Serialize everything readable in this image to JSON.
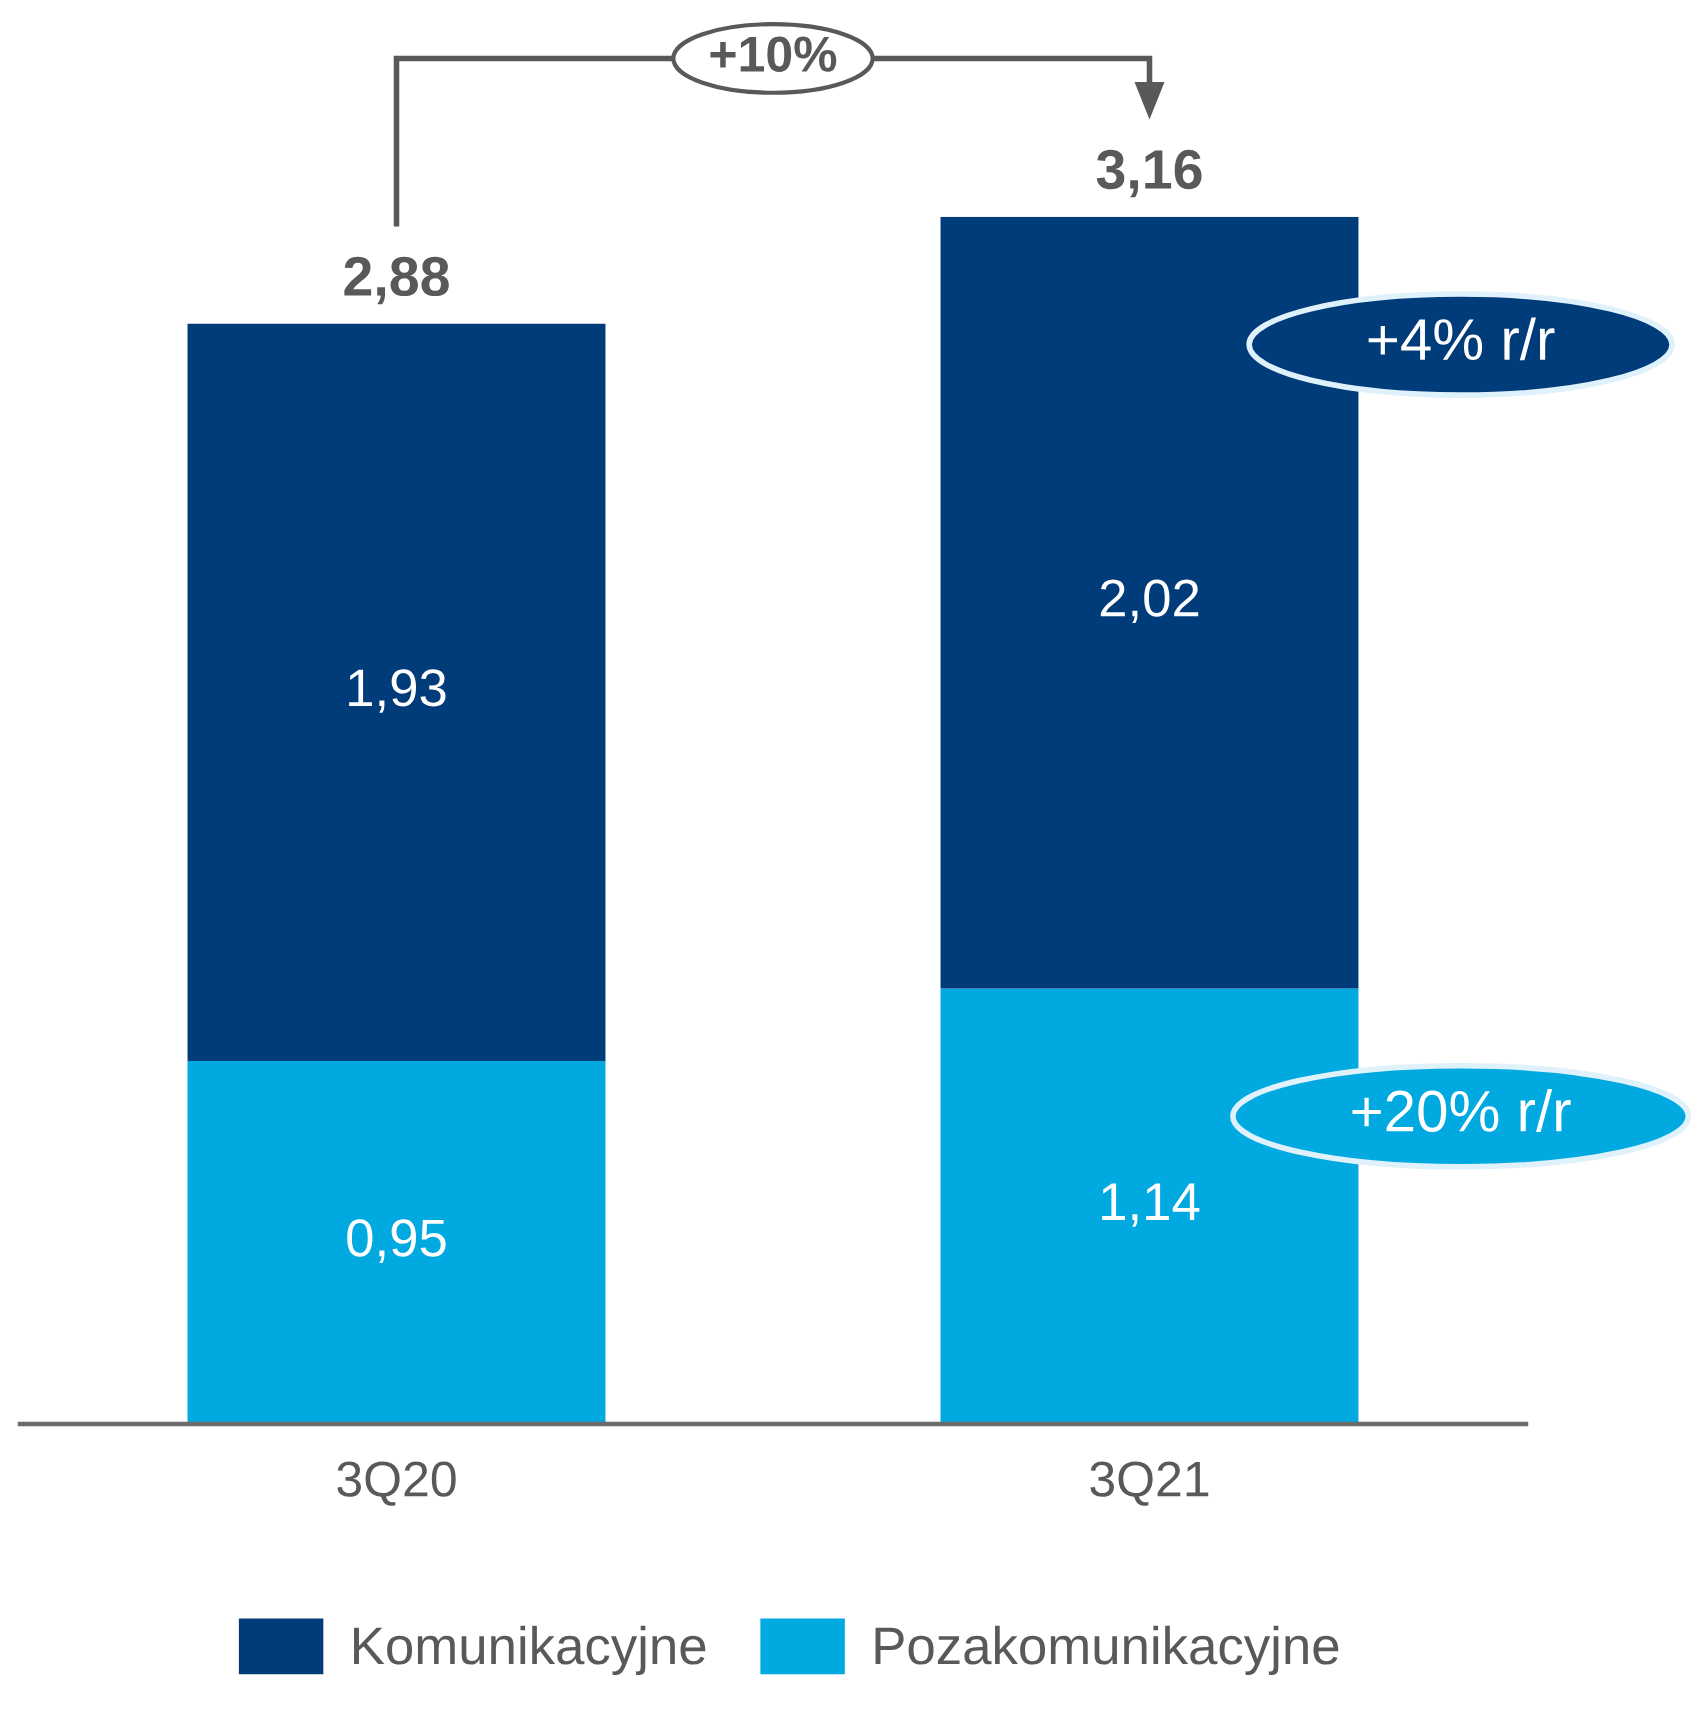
{
  "chart_data": {
    "type": "bar",
    "stacked": true,
    "categories": [
      "3Q20",
      "3Q21"
    ],
    "series": [
      {
        "name": "Pozakomunikacyjne",
        "color": "#00a9e0",
        "values": [
          0.95,
          1.14
        ],
        "value_labels": [
          "0,95",
          "1,14"
        ]
      },
      {
        "name": "Komunikacyjne",
        "color": "#003b7a",
        "values": [
          1.93,
          2.02
        ],
        "value_labels": [
          "1,93",
          "2,02"
        ]
      }
    ],
    "totals": [
      "2,88",
      "3,16"
    ],
    "annotations": [
      "+10%",
      "+4% r/r",
      "+20% r/r"
    ],
    "tick_labels": "x",
    "legend": "bottom"
  }
}
